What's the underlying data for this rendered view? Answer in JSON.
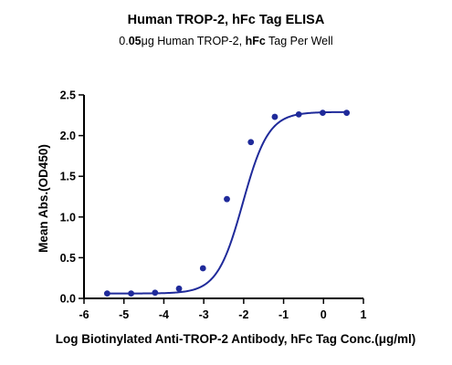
{
  "chart_data": {
    "type": "scatter",
    "title": "Human TROP-2, hFc Tag ELISA",
    "subtitle": {
      "parts": [
        {
          "text": "0.",
          "bold": false
        },
        {
          "text": "05",
          "bold": true
        },
        {
          "text": "μg Human TROP-2, ",
          "bold": false
        },
        {
          "text": "hFc",
          "bold": true
        },
        {
          "text": " Tag Per Well",
          "bold": false
        }
      ]
    },
    "xlabel": "Log Biotinylated Anti-TROP-2 Antibody, hFc Tag Conc.(μg/ml)",
    "ylabel": "Mean Abs.(OD450)",
    "xlim": [
      -6,
      1
    ],
    "ylim": [
      0,
      2.5
    ],
    "x_ticks": [
      "-6",
      "-5",
      "-4",
      "-3",
      "-2",
      "-1",
      "0",
      "1"
    ],
    "y_ticks": [
      "0.0",
      "0.5",
      "1.0",
      "1.5",
      "2.0",
      "2.5"
    ],
    "x_tick_values": [
      -6,
      -5,
      -4,
      -3,
      -2,
      -1,
      0,
      1
    ],
    "y_tick_values": [
      0,
      0.5,
      1.0,
      1.5,
      2.0,
      2.5
    ],
    "grid": false,
    "series": [
      {
        "color": "#1f2a9a",
        "points": [
          {
            "x": -5.42,
            "y": 0.06
          },
          {
            "x": -4.82,
            "y": 0.06
          },
          {
            "x": -4.22,
            "y": 0.07
          },
          {
            "x": -3.62,
            "y": 0.12
          },
          {
            "x": -3.02,
            "y": 0.37
          },
          {
            "x": -2.42,
            "y": 1.22
          },
          {
            "x": -1.82,
            "y": 1.92
          },
          {
            "x": -1.22,
            "y": 2.23
          },
          {
            "x": -0.62,
            "y": 2.26
          },
          {
            "x": -0.02,
            "y": 2.28
          },
          {
            "x": 0.58,
            "y": 2.28
          }
        ],
        "fit": {
          "model": "4PL",
          "bottom": 0.06,
          "top": 2.29,
          "logEC50": -2.02,
          "hill": 1.35
        }
      }
    ]
  }
}
